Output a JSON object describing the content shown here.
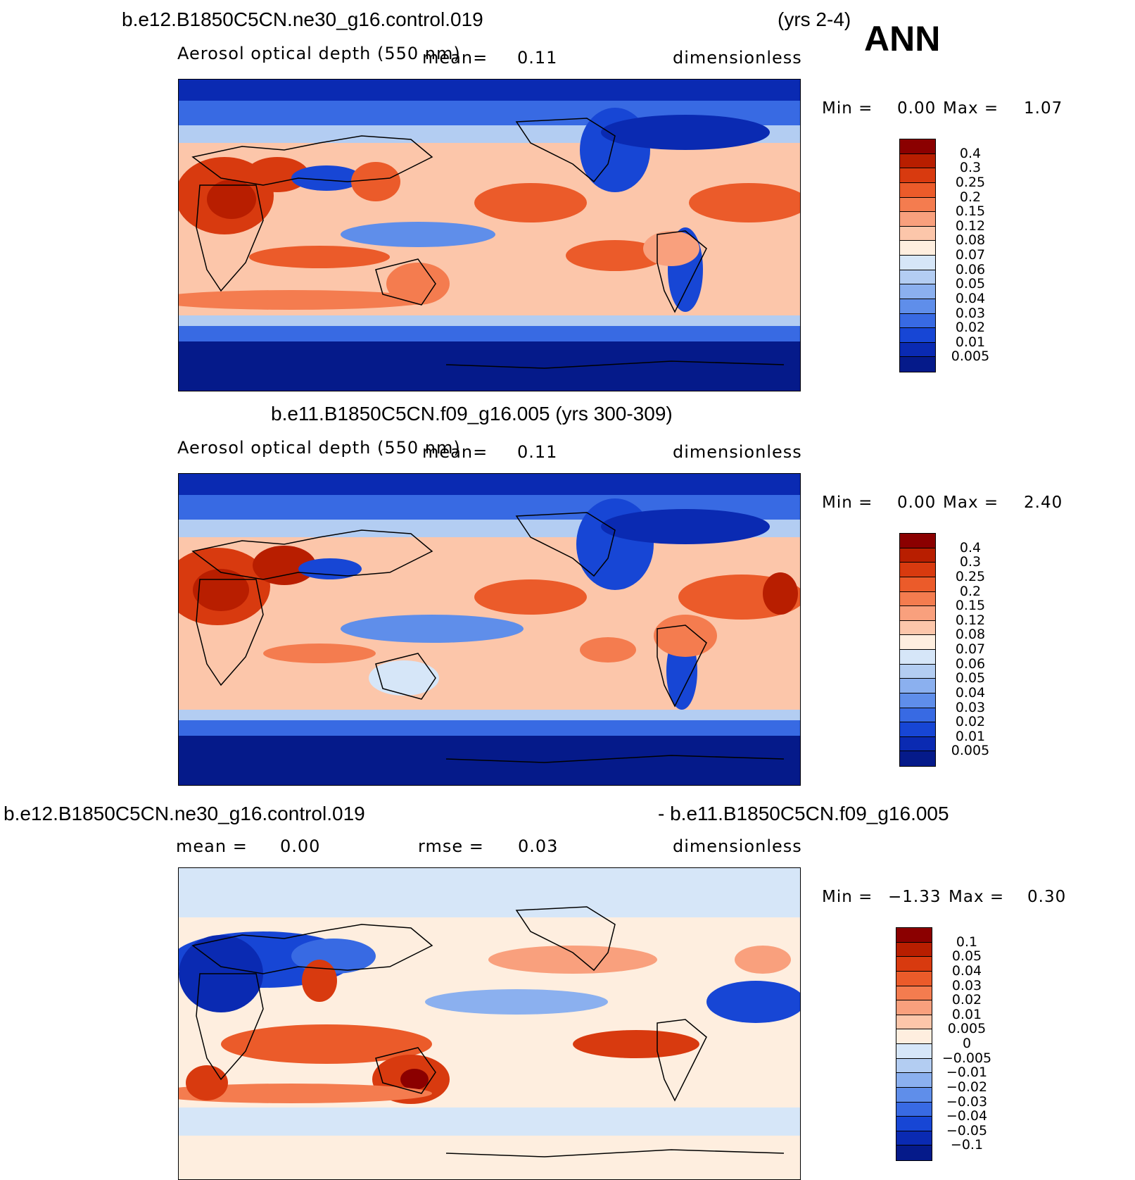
{
  "header": {
    "case1": "b.e12.B1850C5CN.ne30_g16.control.019",
    "years1": "(yrs 2-4)",
    "season": "ANN",
    "case2_title": "b.e11.B1850C5CN.f09_g16.005 (yrs 300-309)",
    "diff_left": "b.e12.B1850C5CN.ne30_g16.control.019",
    "diff_right": "- b.e11.B1850C5CN.f09_g16.005"
  },
  "panels": [
    {
      "variable": "Aerosol optical depth (550 nm)",
      "mean_label": "mean=",
      "mean_value": "0.11",
      "units": "dimensionless",
      "min_label": "Min =",
      "min_value": "0.00",
      "max_label": "Max =",
      "max_value": "1.07",
      "colorbar_labels": [
        "0.4",
        "0.3",
        "0.25",
        "0.2",
        "0.15",
        "0.12",
        "0.08",
        "0.07",
        "0.06",
        "0.05",
        "0.04",
        "0.03",
        "0.02",
        "0.01",
        "0.005"
      ],
      "colors": [
        "#8B0000",
        "#B81E00",
        "#D83A0F",
        "#EB5B2A",
        "#F47C4F",
        "#F9A07D",
        "#FCC6AA",
        "#FEEEDF",
        "#D6E6F8",
        "#B3CDF2",
        "#8BB0EF",
        "#5F8EEA",
        "#386AE3",
        "#1746D5",
        "#0A2AB2",
        "#051A8A"
      ]
    },
    {
      "variable": "Aerosol optical depth (550 nm)",
      "mean_label": "mean=",
      "mean_value": "0.11",
      "units": "dimensionless",
      "min_label": "Min =",
      "min_value": "0.00",
      "max_label": "Max =",
      "max_value": "2.40",
      "colorbar_labels": [
        "0.4",
        "0.3",
        "0.25",
        "0.2",
        "0.15",
        "0.12",
        "0.08",
        "0.07",
        "0.06",
        "0.05",
        "0.04",
        "0.03",
        "0.02",
        "0.01",
        "0.005"
      ],
      "colors": [
        "#8B0000",
        "#B81E00",
        "#D83A0F",
        "#EB5B2A",
        "#F47C4F",
        "#F9A07D",
        "#FCC6AA",
        "#FEEEDF",
        "#D6E6F8",
        "#B3CDF2",
        "#8BB0EF",
        "#5F8EEA",
        "#386AE3",
        "#1746D5",
        "#0A2AB2",
        "#051A8A"
      ]
    },
    {
      "mean_label": "mean =",
      "mean_value": "0.00",
      "rmse_label": "rmse =",
      "rmse_value": "0.03",
      "units": "dimensionless",
      "min_label": "Min =",
      "min_value": "−1.33",
      "max_label": "Max =",
      "max_value": "0.30",
      "colorbar_labels": [
        "0.1",
        "0.05",
        "0.04",
        "0.03",
        "0.02",
        "0.01",
        "0.005",
        "0",
        "−0.005",
        "−0.01",
        "−0.02",
        "−0.03",
        "−0.04",
        "−0.05",
        "−0.1"
      ],
      "colors": [
        "#8B0000",
        "#B81E00",
        "#D83A0F",
        "#EB5B2A",
        "#F47C4F",
        "#F9A07D",
        "#FCC6AA",
        "#FEEEDF",
        "#D6E6F8",
        "#B3CDF2",
        "#8BB0EF",
        "#5F8EEA",
        "#386AE3",
        "#1746D5",
        "#0A2AB2",
        "#051A8A"
      ]
    }
  ]
}
